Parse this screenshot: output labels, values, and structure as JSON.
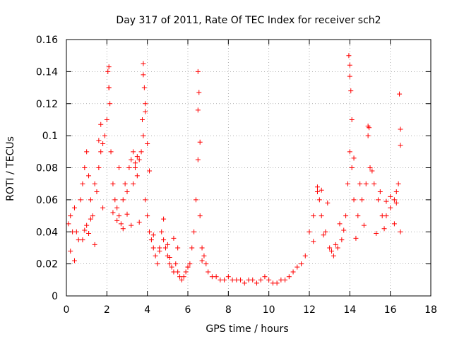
{
  "chart_data": {
    "type": "scatter",
    "title": "Day 317 of 2011, Rate Of TEC Index for receiver sch2",
    "xlabel": "GPS time / hours",
    "ylabel": "ROTI / TECUs",
    "xlim": [
      0,
      18
    ],
    "ylim": [
      0,
      0.16
    ],
    "x_ticks": [
      "0",
      "2",
      "4",
      "6",
      "8",
      "10",
      "12",
      "14",
      "16",
      "18"
    ],
    "y_ticks": [
      "0",
      "0.02",
      "0.04",
      "0.06",
      "0.08",
      "0.1",
      "0.12",
      "0.14",
      "0.16"
    ],
    "grid": true,
    "marker": "+",
    "color": "#ff0000",
    "series": [
      {
        "x": [
          0.1,
          0.2,
          0.3,
          0.4,
          0.5,
          0.6,
          0.7,
          0.8,
          0.9,
          1.0,
          1.1,
          1.2,
          1.3,
          1.4,
          1.5,
          1.6,
          1.7,
          1.8,
          1.9,
          2.0,
          2.1,
          2.2,
          2.3,
          2.4,
          2.5,
          2.6,
          2.7,
          2.8,
          2.9,
          3.0,
          3.1,
          3.2,
          3.3,
          3.4,
          3.5,
          3.6,
          3.7,
          3.8,
          3.9,
          4.0,
          4.1,
          4.2,
          4.3,
          4.4,
          4.5,
          4.6,
          4.7,
          4.8,
          4.9,
          5.0,
          5.1,
          5.2,
          5.3,
          5.4,
          5.5,
          5.6,
          5.7,
          5.8,
          5.9,
          6.0,
          6.1,
          6.2,
          6.3,
          6.4,
          6.5,
          6.6,
          6.7,
          6.8,
          6.9,
          7.0,
          7.2,
          7.4,
          7.6,
          7.8,
          8.0,
          8.2,
          8.4,
          8.6,
          8.8,
          9.0,
          9.2,
          9.4,
          9.6,
          9.8,
          10.0,
          10.2,
          10.4,
          10.6,
          10.8,
          11.0,
          11.2,
          11.4,
          11.6,
          11.8,
          12.0,
          12.2,
          12.4,
          12.5,
          12.6,
          12.8,
          13.0,
          13.2,
          13.4,
          13.6,
          13.8,
          13.9,
          14.0,
          14.1,
          14.2,
          14.4,
          14.6,
          14.8,
          14.9,
          15.0,
          15.2,
          15.4,
          15.6,
          15.8,
          16.0,
          16.2,
          16.3,
          16.4,
          16.5,
          2.05,
          2.1,
          2.1,
          2.15,
          3.8,
          3.8,
          3.85,
          3.9,
          3.9,
          3.75,
          6.5,
          6.55,
          6.5,
          6.6,
          13.95,
          14.0,
          14.0,
          14.05,
          14.1,
          14.9,
          14.95,
          16.45,
          16.5,
          16.5,
          1.6,
          1.7,
          2.6,
          3.3,
          3.4,
          3.5,
          4.0,
          4.1,
          4.8,
          5.0,
          5.3,
          12.4,
          12.6,
          12.9,
          13.5,
          14.2,
          14.5,
          15.1,
          15.5,
          15.8,
          16.0,
          16.3,
          0.2,
          0.4,
          0.8,
          0.9,
          1.0,
          1.1,
          1.2,
          1.4,
          1.8,
          2.3,
          2.5,
          2.8,
          3.0,
          3.2,
          3.6,
          4.3,
          4.6,
          5.1,
          5.5,
          6.0,
          6.7,
          12.2,
          12.7,
          13.1,
          13.3,
          13.7,
          14.3,
          14.7,
          15.3,
          15.7,
          16.2
        ],
        "y": [
          0.045,
          0.05,
          0.04,
          0.055,
          0.04,
          0.035,
          0.06,
          0.07,
          0.08,
          0.09,
          0.075,
          0.06,
          0.05,
          0.07,
          0.065,
          0.08,
          0.09,
          0.095,
          0.1,
          0.11,
          0.13,
          0.09,
          0.07,
          0.06,
          0.055,
          0.05,
          0.045,
          0.06,
          0.07,
          0.065,
          0.08,
          0.085,
          0.07,
          0.08,
          0.075,
          0.085,
          0.09,
          0.1,
          0.06,
          0.05,
          0.04,
          0.035,
          0.03,
          0.025,
          0.02,
          0.03,
          0.04,
          0.035,
          0.03,
          0.025,
          0.02,
          0.018,
          0.015,
          0.02,
          0.015,
          0.012,
          0.01,
          0.012,
          0.015,
          0.018,
          0.02,
          0.03,
          0.04,
          0.06,
          0.085,
          0.05,
          0.03,
          0.025,
          0.02,
          0.015,
          0.012,
          0.012,
          0.01,
          0.01,
          0.012,
          0.01,
          0.01,
          0.01,
          0.008,
          0.01,
          0.01,
          0.008,
          0.01,
          0.012,
          0.01,
          0.008,
          0.008,
          0.01,
          0.01,
          0.012,
          0.015,
          0.018,
          0.02,
          0.025,
          0.04,
          0.05,
          0.065,
          0.06,
          0.05,
          0.04,
          0.03,
          0.025,
          0.03,
          0.035,
          0.05,
          0.07,
          0.09,
          0.08,
          0.06,
          0.05,
          0.06,
          0.07,
          0.1,
          0.08,
          0.07,
          0.06,
          0.05,
          0.05,
          0.055,
          0.06,
          0.065,
          0.07,
          0.04,
          0.14,
          0.143,
          0.13,
          0.12,
          0.145,
          0.138,
          0.13,
          0.12,
          0.115,
          0.11,
          0.14,
          0.127,
          0.116,
          0.096,
          0.15,
          0.144,
          0.137,
          0.128,
          0.11,
          0.106,
          0.105,
          0.126,
          0.104,
          0.094,
          0.097,
          0.107,
          0.08,
          0.09,
          0.083,
          0.087,
          0.095,
          0.078,
          0.048,
          0.032,
          0.036,
          0.068,
          0.066,
          0.058,
          0.045,
          0.086,
          0.07,
          0.078,
          0.065,
          0.059,
          0.062,
          0.058,
          0.028,
          0.022,
          0.035,
          0.041,
          0.044,
          0.039,
          0.048,
          0.032,
          0.055,
          0.052,
          0.047,
          0.042,
          0.051,
          0.044,
          0.046,
          0.038,
          0.028,
          0.024,
          0.03,
          0.018,
          0.022,
          0.034,
          0.038,
          0.028,
          0.032,
          0.041,
          0.036,
          0.044,
          0.039,
          0.042,
          0.045
        ]
      }
    ]
  }
}
